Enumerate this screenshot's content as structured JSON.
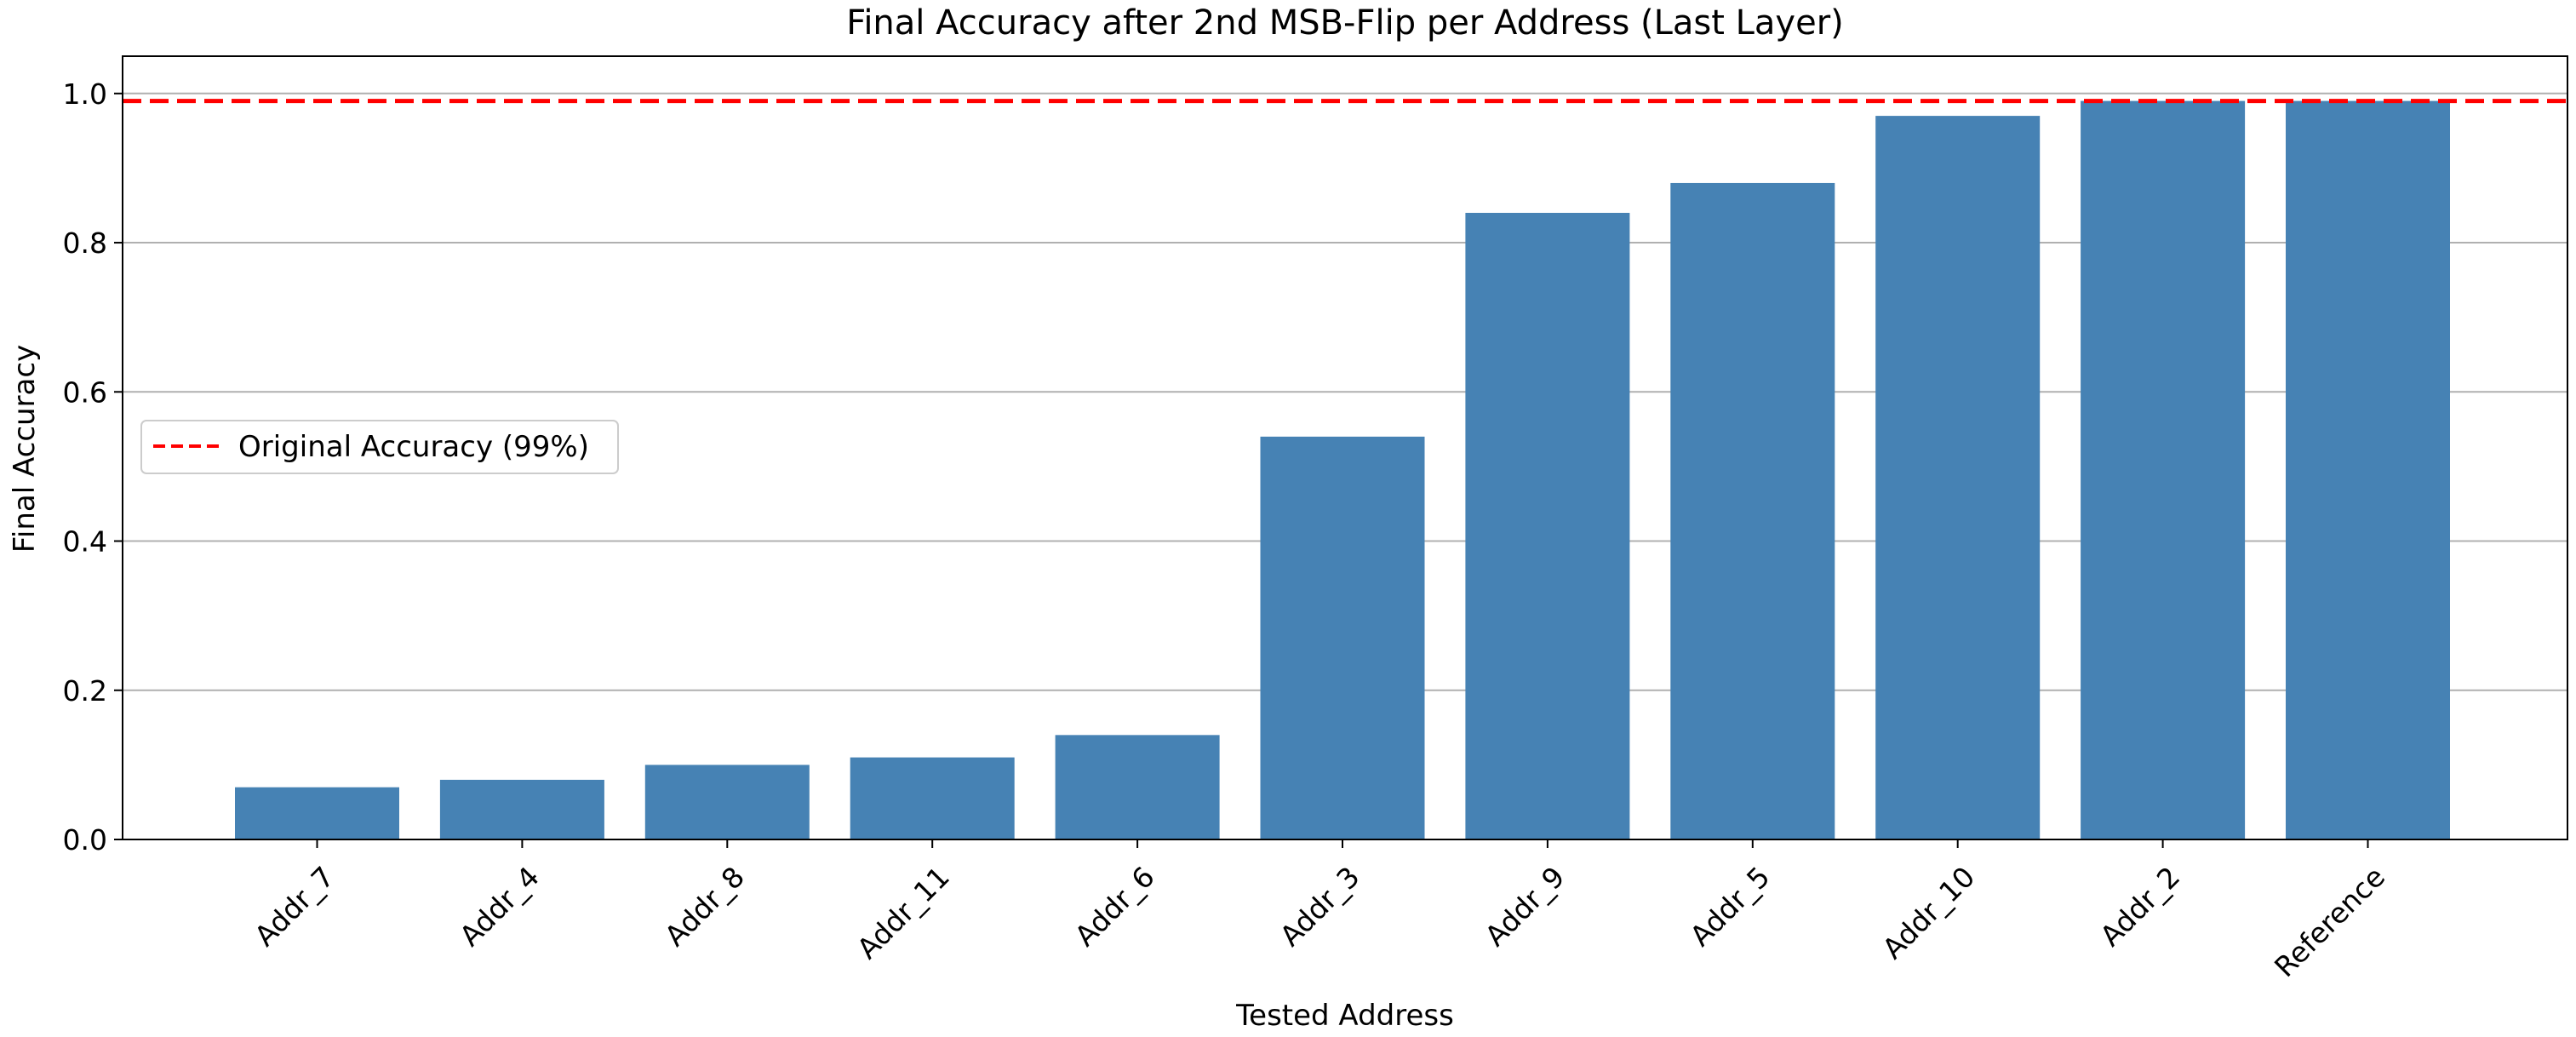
{
  "chart_data": {
    "type": "bar",
    "title": "Final Accuracy after 2nd MSB-Flip per Address (Last Layer)",
    "xlabel": "Tested Address",
    "ylabel": "Final Accuracy",
    "categories": [
      "Addr_7",
      "Addr_4",
      "Addr_8",
      "Addr_11",
      "Addr_6",
      "Addr_3",
      "Addr_9",
      "Addr_5",
      "Addr_10",
      "Addr_2",
      "Reference"
    ],
    "values": [
      0.07,
      0.08,
      0.1,
      0.11,
      0.14,
      0.54,
      0.84,
      0.88,
      0.97,
      0.99,
      0.99
    ],
    "ylim": [
      0,
      1.05
    ],
    "yticks": [
      "0.0",
      "0.2",
      "0.4",
      "0.6",
      "0.8",
      "1.0"
    ],
    "grid": "horizontal",
    "bar_color": "#4682b4",
    "reference_line": {
      "value": 0.99,
      "label": "Original Accuracy (99%)",
      "color": "#ff0000",
      "style": "dashed"
    },
    "legend": {
      "placement": "center-left",
      "entries": [
        "Original Accuracy (99%)"
      ]
    }
  }
}
